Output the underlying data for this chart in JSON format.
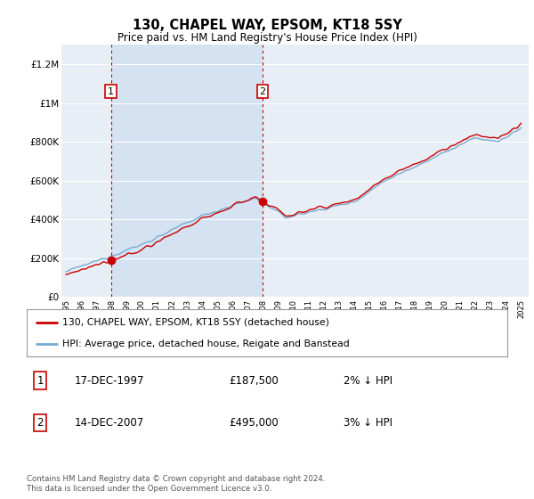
{
  "title": "130, CHAPEL WAY, EPSOM, KT18 5SY",
  "subtitle": "Price paid vs. HM Land Registry's House Price Index (HPI)",
  "ylim": [
    0,
    1300000
  ],
  "yticks": [
    0,
    200000,
    400000,
    600000,
    800000,
    1000000,
    1200000
  ],
  "ytick_labels": [
    "£0",
    "£200K",
    "£400K",
    "£600K",
    "£800K",
    "£1M",
    "£1.2M"
  ],
  "background_color": "#ffffff",
  "plot_bg_color": "#e8eef5",
  "grid_color": "#ffffff",
  "sale1_x": 1997.96,
  "sale1_y": 187500,
  "sale1_label": "1",
  "sale1_date": "17-DEC-1997",
  "sale1_price": "£187,500",
  "sale1_hpi_diff": "2% ↓ HPI",
  "sale2_x": 2007.96,
  "sale2_y": 495000,
  "sale2_label": "2",
  "sale2_date": "14-DEC-2007",
  "sale2_price": "£495,000",
  "sale2_hpi_diff": "3% ↓ HPI",
  "legend_property": "130, CHAPEL WAY, EPSOM, KT18 5SY (detached house)",
  "legend_hpi": "HPI: Average price, detached house, Reigate and Banstead",
  "footnote": "Contains HM Land Registry data © Crown copyright and database right 2024.\nThis data is licensed under the Open Government Licence v3.0.",
  "property_line_color": "#cc0000",
  "hpi_line_color": "#7aaad0",
  "sale_marker_color": "#cc0000",
  "vline_dash_color": "#cc0000",
  "shade_color": "#ccddf0",
  "xlim_min": 1994.7,
  "xlim_max": 2025.5
}
